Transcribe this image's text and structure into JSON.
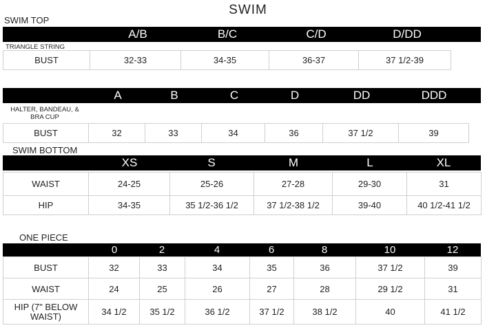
{
  "title": "SWIM",
  "swim_top": {
    "label": "SWIM TOP",
    "headers": [
      "A/B",
      "B/C",
      "C/D",
      "D/DD"
    ],
    "row_label": "TRIANGLE STRING",
    "rows": [
      [
        "BUST",
        "32-33",
        "34-35",
        "36-37",
        "37 1/2-39"
      ]
    ]
  },
  "halter": {
    "headers": [
      "A",
      "B",
      "C",
      "D",
      "DD",
      "DDD"
    ],
    "row_label": "HALTER, BANDEAU, & BRA CUP",
    "rows": [
      [
        "BUST",
        "32",
        "33",
        "34",
        "36",
        "37 1/2",
        "39"
      ]
    ]
  },
  "swim_bottom": {
    "label": "SWIM BOTTOM",
    "headers": [
      "XS",
      "S",
      "M",
      "L",
      "XL"
    ],
    "rows": [
      [
        "WAIST",
        "24-25",
        "25-26",
        "27-28",
        "29-30",
        "31"
      ],
      [
        "HIP",
        "34-35",
        "35 1/2-36 1/2",
        "37 1/2-38 1/2",
        "39-40",
        "40 1/2-41 1/2"
      ]
    ]
  },
  "one_piece": {
    "label": "ONE PIECE",
    "headers": [
      "0",
      "2",
      "4",
      "6",
      "8",
      "10",
      "12"
    ],
    "rows": [
      [
        "BUST",
        "32",
        "33",
        "34",
        "35",
        "36",
        "37 1/2",
        "39"
      ],
      [
        "WAIST",
        "24",
        "25",
        "26",
        "27",
        "28",
        "29 1/2",
        "31"
      ],
      [
        "HIP (7\" BELOW WAIST)",
        "34 1/2",
        "35 1/2",
        "36 1/2",
        "37 1/2",
        "38 1/2",
        "40",
        "41 1/2"
      ]
    ]
  }
}
